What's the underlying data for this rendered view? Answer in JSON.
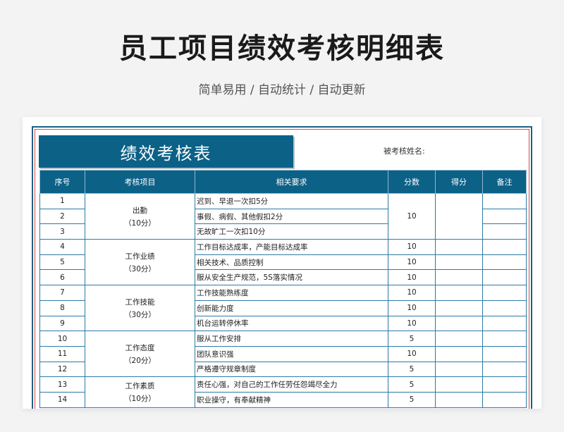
{
  "title": "员工项目绩效考核明细表",
  "subtitle": "简单易用 / 自动统计 / 自动更新",
  "sheet": {
    "title": "绩效考核表",
    "name_label": "被考核姓名:"
  },
  "headers": [
    "序号",
    "考核项目",
    "相关要求",
    "分数",
    "得分",
    "备注"
  ],
  "groups": [
    {
      "category": "出勤",
      "points": "（10分）",
      "rows": [
        {
          "no": "1",
          "req": "迟到、早退一次扣5分"
        },
        {
          "no": "2",
          "req": "事假、病假、其他假扣2分"
        },
        {
          "no": "3",
          "req": "无故旷工一次扣10分"
        }
      ],
      "score": "10"
    },
    {
      "category": "工作业绩",
      "points": "（30分）",
      "rows": [
        {
          "no": "4",
          "req": "工作目标达成率，产能目标达成率",
          "score": "10"
        },
        {
          "no": "5",
          "req": "相关技术、品质控制",
          "score": "10"
        },
        {
          "no": "6",
          "req": "服从安全生产规范，5S落实情况",
          "score": "10"
        }
      ]
    },
    {
      "category": "工作技能",
      "points": "（30分）",
      "rows": [
        {
          "no": "7",
          "req": "工作技能熟练度",
          "score": "10"
        },
        {
          "no": "8",
          "req": "创新能力度",
          "score": "10"
        },
        {
          "no": "9",
          "req": "机台运转停休率",
          "score": "10"
        }
      ]
    },
    {
      "category": "工作态度",
      "points": "（20分）",
      "rows": [
        {
          "no": "10",
          "req": "服从工作安排",
          "score": "5"
        },
        {
          "no": "11",
          "req": "团队意识强",
          "score": "10"
        },
        {
          "no": "12",
          "req": "严格遵守规章制度",
          "score": "5"
        }
      ]
    },
    {
      "category": "工作素质",
      "points": "（10分）",
      "rows": [
        {
          "no": "13",
          "req": "责任心强，对自己的工作任劳任怨竭尽全力",
          "score": "5"
        },
        {
          "no": "14",
          "req": "职业操守，有奉献精神",
          "score": "5"
        }
      ]
    }
  ]
}
